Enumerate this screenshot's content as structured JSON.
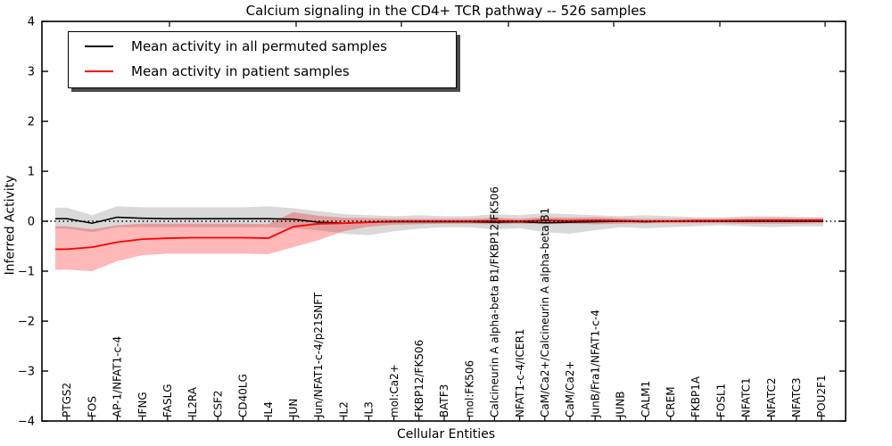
{
  "chart_data": {
    "type": "line",
    "title": "Calcium signaling in the CD4+ TCR pathway -- 526 samples",
    "xlabel": "Cellular Entities",
    "ylabel": "Inferred Activity",
    "ylim": [
      -4,
      4
    ],
    "yticks": [
      4,
      3,
      2,
      1,
      0,
      -1,
      -2,
      -3,
      -4
    ],
    "ytick_labels": [
      "4",
      "3",
      "2",
      "1",
      "0",
      "−1",
      "−2",
      "−3",
      "−4"
    ],
    "grid": false,
    "zero_line": {
      "value": 0,
      "style": "dotted",
      "color": "#000000"
    },
    "legend_position": "upper left",
    "categories": [
      "PTGS2",
      "FOS",
      "AP-1/NFAT1-c-4",
      "IFNG",
      "FASLG",
      "IL2RA",
      "CSF2",
      "CD40LG",
      "IL4",
      "JUN",
      "Jun/NFAT1-c-4/p21SNFT",
      "IL2",
      "IL3",
      "mol:Ca2+",
      "FKBP12/FK506",
      "BATF3",
      "mol:FK506",
      "Calcineurin A alpha-beta B1/FKBP12/FK506",
      "NFAT1-c-4/ICER1",
      "CaM/Ca2+/Calcineurin A alpha-beta B1",
      "CaM/Ca2+",
      "JunB/Fra1/NFAT1-c-4",
      "JUNB",
      "CALM1",
      "CREM",
      "FKBP1A",
      "FOSL1",
      "NFATC1",
      "NFATC2",
      "NFATC3",
      "POU2F1"
    ],
    "series": [
      {
        "name": "Mean activity in all permuted samples",
        "color": "#000000",
        "band_color": "rgba(0,0,0,0.15)",
        "values": [
          0.05,
          -0.04,
          0.08,
          0.06,
          0.05,
          0.05,
          0.05,
          0.05,
          0.05,
          0.04,
          -0.02,
          -0.04,
          -0.02,
          -0.01,
          -0.01,
          -0.01,
          -0.01,
          -0.02,
          -0.01,
          -0.03,
          -0.02,
          -0.01,
          0.0,
          -0.01,
          0.0,
          0.0,
          0.0,
          0.0,
          0.0,
          0.0,
          0.0
        ],
        "band_upper": [
          0.27,
          0.12,
          0.3,
          0.28,
          0.28,
          0.28,
          0.28,
          0.28,
          0.3,
          0.26,
          0.2,
          0.14,
          0.12,
          0.1,
          0.12,
          0.1,
          0.1,
          0.14,
          0.12,
          0.16,
          0.14,
          0.12,
          0.1,
          0.12,
          0.1,
          0.08,
          0.08,
          0.1,
          0.1,
          0.09,
          0.08
        ],
        "band_lower": [
          -0.15,
          -0.22,
          -0.12,
          -0.12,
          -0.12,
          -0.12,
          -0.12,
          -0.12,
          -0.12,
          -0.14,
          -0.18,
          -0.25,
          -0.28,
          -0.2,
          -0.15,
          -0.12,
          -0.12,
          -0.16,
          -0.14,
          -0.22,
          -0.25,
          -0.18,
          -0.12,
          -0.14,
          -0.12,
          -0.1,
          -0.08,
          -0.1,
          -0.12,
          -0.1,
          -0.1
        ]
      },
      {
        "name": "Mean activity in patient samples",
        "color": "#ff0000",
        "band_color": "rgba(255,0,0,0.28)",
        "values": [
          -0.56,
          -0.52,
          -0.42,
          -0.36,
          -0.34,
          -0.33,
          -0.33,
          -0.33,
          -0.34,
          -0.11,
          -0.05,
          -0.04,
          -0.02,
          0.0,
          0.0,
          0.0,
          0.0,
          0.01,
          0.0,
          0.02,
          0.01,
          0.02,
          0.01,
          0.0,
          0.0,
          0.01,
          0.01,
          0.02,
          0.02,
          0.02,
          0.02
        ],
        "band_upper": [
          -0.1,
          -0.16,
          -0.08,
          -0.05,
          -0.05,
          -0.05,
          -0.05,
          -0.05,
          -0.06,
          0.18,
          0.11,
          0.07,
          0.06,
          0.05,
          0.05,
          0.05,
          0.05,
          0.07,
          0.05,
          0.08,
          0.07,
          0.08,
          0.06,
          0.05,
          0.05,
          0.05,
          0.05,
          0.06,
          0.07,
          0.06,
          0.06
        ],
        "band_lower": [
          -0.97,
          -1.0,
          -0.8,
          -0.68,
          -0.65,
          -0.65,
          -0.65,
          -0.65,
          -0.66,
          -0.52,
          -0.38,
          -0.2,
          -0.11,
          -0.07,
          -0.06,
          -0.05,
          -0.05,
          -0.06,
          -0.05,
          -0.06,
          -0.05,
          -0.06,
          -0.05,
          -0.04,
          -0.04,
          -0.04,
          -0.04,
          -0.05,
          -0.05,
          -0.05,
          -0.04
        ]
      }
    ]
  }
}
